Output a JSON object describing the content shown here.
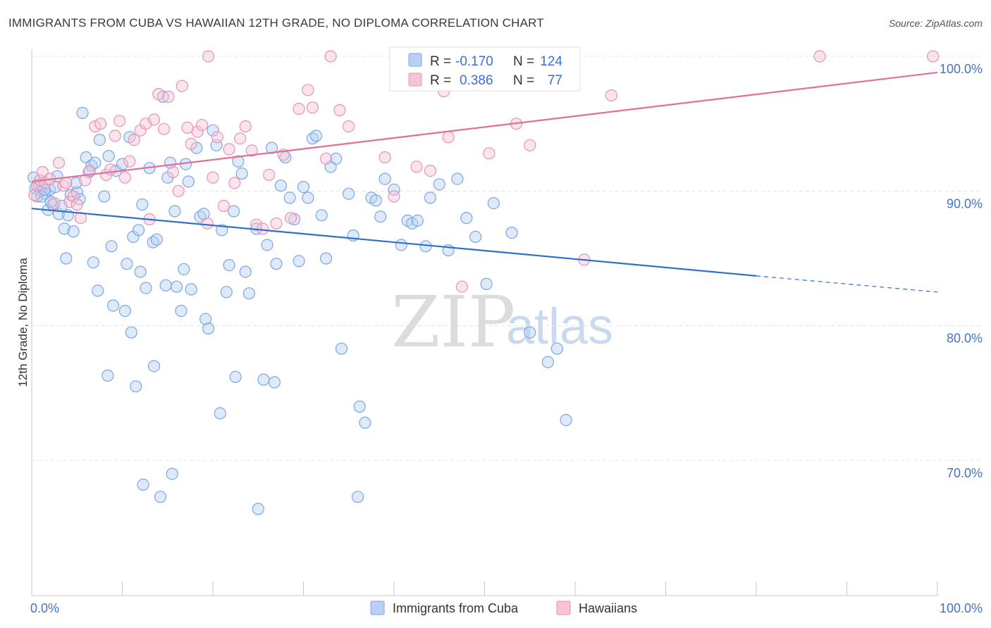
{
  "chart_data": {
    "type": "scatter",
    "title": "IMMIGRANTS FROM CUBA VS HAWAIIAN 12TH GRADE, NO DIPLOMA CORRELATION CHART",
    "source": "Source: ZipAtlas.com",
    "xlabel": "",
    "ylabel": "12th Grade, No Diploma",
    "xlim": [
      0,
      100
    ],
    "ylim": [
      60,
      101.5
    ],
    "x_tick_labels": [
      "0.0%",
      "100.0%"
    ],
    "y_ticks": [
      70,
      80,
      90,
      100
    ],
    "y_tick_labels": [
      "70.0%",
      "80.0%",
      "90.0%",
      "100.0%"
    ],
    "grid": true,
    "watermark": {
      "zip": "ZIP",
      "atlas": "atlas"
    },
    "legend": {
      "placement": "top-center",
      "rows": [
        {
          "r_label": "R =",
          "r_value": "-0.170",
          "n_label": "N =",
          "n_value": "124"
        },
        {
          "r_label": "R =",
          "r_value": "0.386",
          "n_label": "N =",
          "n_value": "77"
        }
      ]
    },
    "series": [
      {
        "name": "Immigrants from Cuba",
        "color": "#7aa6e6",
        "fill": "#b9d0f2",
        "trend": {
          "x0": 0,
          "y0": 88.7,
          "x1": 80,
          "y1": 83.7,
          "dash_x1": 100,
          "dash_y1": 82.5,
          "color": "#2f6fcc"
        },
        "points": [
          [
            0.4,
            90.2
          ],
          [
            0.6,
            89.6
          ],
          [
            0.8,
            90.5
          ],
          [
            1.0,
            90.0
          ],
          [
            1.2,
            90.3
          ],
          [
            1.5,
            89.8
          ],
          [
            1.8,
            88.6
          ],
          [
            2.0,
            90.1
          ],
          [
            2.3,
            89.0
          ],
          [
            2.6,
            90.3
          ],
          [
            3.0,
            88.3
          ],
          [
            3.3,
            88.9
          ],
          [
            3.6,
            87.2
          ],
          [
            4.0,
            88.2
          ],
          [
            4.3,
            89.7
          ],
          [
            4.6,
            87.0
          ],
          [
            5.0,
            89.9
          ],
          [
            5.3,
            89.4
          ],
          [
            5.6,
            95.8
          ],
          [
            6.0,
            92.5
          ],
          [
            6.3,
            91.4
          ],
          [
            6.6,
            91.9
          ],
          [
            7.0,
            92.1
          ],
          [
            7.5,
            93.8
          ],
          [
            8.0,
            89.6
          ],
          [
            8.5,
            92.6
          ],
          [
            8.8,
            85.9
          ],
          [
            9.3,
            91.5
          ],
          [
            10.0,
            92.0
          ],
          [
            10.5,
            84.6
          ],
          [
            10.8,
            94.0
          ],
          [
            11.2,
            86.6
          ],
          [
            11.8,
            87.1
          ],
          [
            12.2,
            89.0
          ],
          [
            12.6,
            82.8
          ],
          [
            13.0,
            91.7
          ],
          [
            13.4,
            86.2
          ],
          [
            13.8,
            86.4
          ],
          [
            14.5,
            97.0
          ],
          [
            15.0,
            91.0
          ],
          [
            15.3,
            92.1
          ],
          [
            15.8,
            88.5
          ],
          [
            16.0,
            82.9
          ],
          [
            16.5,
            81.1
          ],
          [
            17.0,
            92.0
          ],
          [
            17.3,
            90.7
          ],
          [
            17.6,
            82.7
          ],
          [
            18.2,
            93.2
          ],
          [
            18.6,
            88.1
          ],
          [
            19.0,
            88.3
          ],
          [
            19.5,
            79.8
          ],
          [
            20.0,
            94.5
          ],
          [
            20.4,
            93.4
          ],
          [
            21.0,
            87.1
          ],
          [
            21.5,
            82.5
          ],
          [
            22.3,
            88.5
          ],
          [
            22.8,
            92.2
          ],
          [
            23.2,
            91.3
          ],
          [
            23.6,
            84.0
          ],
          [
            24.0,
            82.4
          ],
          [
            24.8,
            87.2
          ],
          [
            25.6,
            76.0
          ],
          [
            26.0,
            86.0
          ],
          [
            26.5,
            93.2
          ],
          [
            27.0,
            84.6
          ],
          [
            27.5,
            90.4
          ],
          [
            28.0,
            92.5
          ],
          [
            28.5,
            89.5
          ],
          [
            29.0,
            87.9
          ],
          [
            29.5,
            84.8
          ],
          [
            30.0,
            90.3
          ],
          [
            30.5,
            89.5
          ],
          [
            31.0,
            93.9
          ],
          [
            31.4,
            94.1
          ],
          [
            32.0,
            88.2
          ],
          [
            32.5,
            85.0
          ],
          [
            33.0,
            91.8
          ],
          [
            33.6,
            92.4
          ],
          [
            34.2,
            78.3
          ],
          [
            35.0,
            89.8
          ],
          [
            35.5,
            86.7
          ],
          [
            36.2,
            74.0
          ],
          [
            36.8,
            72.8
          ],
          [
            37.5,
            89.5
          ],
          [
            38.0,
            89.3
          ],
          [
            38.5,
            88.1
          ],
          [
            39.0,
            90.9
          ],
          [
            40.0,
            90.1
          ],
          [
            40.8,
            86.0
          ],
          [
            41.5,
            87.8
          ],
          [
            42.0,
            87.6
          ],
          [
            42.6,
            87.8
          ],
          [
            43.5,
            85.9
          ],
          [
            44.0,
            89.5
          ],
          [
            45.0,
            90.5
          ],
          [
            46.0,
            85.6
          ],
          [
            47.0,
            90.9
          ],
          [
            48.0,
            88.0
          ],
          [
            49.0,
            86.6
          ],
          [
            50.2,
            83.1
          ],
          [
            51.0,
            89.1
          ],
          [
            53.0,
            86.9
          ],
          [
            55.0,
            79.5
          ],
          [
            57.0,
            77.3
          ],
          [
            58.0,
            78.3
          ],
          [
            59.0,
            73.0
          ],
          [
            7.3,
            82.6
          ],
          [
            9.0,
            81.5
          ],
          [
            10.3,
            81.1
          ],
          [
            11.0,
            79.5
          ],
          [
            11.5,
            75.5
          ],
          [
            12.3,
            68.2
          ],
          [
            13.5,
            77.0
          ],
          [
            14.2,
            67.3
          ],
          [
            15.5,
            69.0
          ],
          [
            20.8,
            73.5
          ],
          [
            22.5,
            76.2
          ],
          [
            25.0,
            66.4
          ],
          [
            26.8,
            75.8
          ],
          [
            36.0,
            67.3
          ],
          [
            3.8,
            85.0
          ],
          [
            6.8,
            84.7
          ],
          [
            8.4,
            76.3
          ],
          [
            12.0,
            84.0
          ],
          [
            14.8,
            83.0
          ],
          [
            16.8,
            84.2
          ],
          [
            19.2,
            80.5
          ],
          [
            21.8,
            84.5
          ],
          [
            2.8,
            91.1
          ],
          [
            0.2,
            91.0
          ],
          [
            1.1,
            89.6
          ],
          [
            1.4,
            90.1
          ],
          [
            2.1,
            89.2
          ],
          [
            4.9,
            90.6
          ]
        ]
      },
      {
        "name": "Hawaiians",
        "color": "#e893b0",
        "fill": "#f6c5d5",
        "trend": {
          "x0": 0,
          "y0": 90.7,
          "x1": 100,
          "y1": 98.8,
          "color": "#e06f99"
        },
        "points": [
          [
            0.3,
            89.7
          ],
          [
            0.6,
            90.4
          ],
          [
            0.9,
            90.8
          ],
          [
            1.2,
            91.4
          ],
          [
            1.5,
            90.6
          ],
          [
            2.0,
            90.9
          ],
          [
            2.5,
            89.1
          ],
          [
            3.0,
            92.1
          ],
          [
            3.5,
            90.4
          ],
          [
            3.8,
            90.6
          ],
          [
            4.2,
            89.2
          ],
          [
            4.6,
            89.6
          ],
          [
            5.0,
            89.0
          ],
          [
            5.4,
            88.0
          ],
          [
            5.9,
            90.8
          ],
          [
            6.4,
            91.5
          ],
          [
            7.0,
            94.8
          ],
          [
            7.6,
            95.0
          ],
          [
            8.2,
            91.2
          ],
          [
            8.7,
            91.6
          ],
          [
            9.2,
            94.1
          ],
          [
            9.7,
            95.2
          ],
          [
            10.3,
            91.0
          ],
          [
            10.8,
            92.2
          ],
          [
            11.3,
            93.8
          ],
          [
            12.0,
            94.5
          ],
          [
            12.6,
            95.0
          ],
          [
            13.0,
            87.9
          ],
          [
            13.5,
            95.3
          ],
          [
            14.0,
            97.2
          ],
          [
            14.6,
            94.6
          ],
          [
            15.1,
            97.0
          ],
          [
            15.6,
            91.4
          ],
          [
            16.2,
            90.0
          ],
          [
            16.6,
            97.8
          ],
          [
            17.2,
            94.7
          ],
          [
            17.6,
            93.5
          ],
          [
            18.3,
            94.4
          ],
          [
            18.8,
            94.9
          ],
          [
            19.4,
            87.6
          ],
          [
            20.0,
            91.0
          ],
          [
            20.5,
            94.0
          ],
          [
            21.2,
            88.9
          ],
          [
            21.8,
            93.1
          ],
          [
            22.4,
            90.6
          ],
          [
            23.0,
            93.9
          ],
          [
            23.6,
            94.8
          ],
          [
            24.3,
            93.0
          ],
          [
            24.8,
            87.5
          ],
          [
            25.5,
            87.2
          ],
          [
            26.2,
            91.2
          ],
          [
            27.0,
            87.6
          ],
          [
            27.8,
            92.7
          ],
          [
            28.6,
            88.0
          ],
          [
            29.5,
            96.1
          ],
          [
            30.5,
            97.5
          ],
          [
            31.0,
            96.2
          ],
          [
            32.5,
            92.4
          ],
          [
            34.0,
            96.0
          ],
          [
            35.0,
            94.8
          ],
          [
            39.0,
            92.5
          ],
          [
            40.0,
            89.6
          ],
          [
            42.5,
            91.8
          ],
          [
            44.0,
            91.5
          ],
          [
            45.5,
            97.4
          ],
          [
            46.0,
            94.0
          ],
          [
            47.5,
            82.9
          ],
          [
            50.5,
            92.8
          ],
          [
            53.5,
            95.0
          ],
          [
            55.0,
            93.4
          ],
          [
            61.0,
            84.9
          ],
          [
            64.0,
            97.1
          ],
          [
            19.5,
            100.0
          ],
          [
            33.0,
            100.0
          ],
          [
            56.5,
            100.0
          ],
          [
            87.0,
            100.0
          ],
          [
            99.5,
            100.0
          ]
        ]
      }
    ]
  }
}
